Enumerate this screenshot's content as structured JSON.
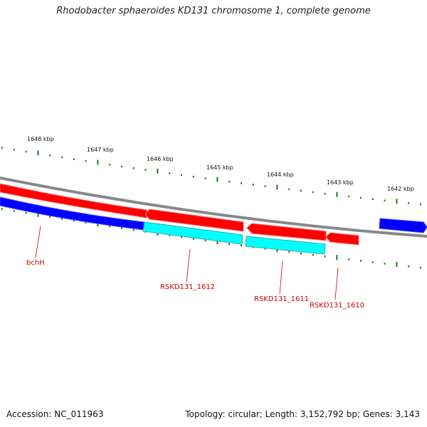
{
  "title": "Rhodobacter sphaeroides KD131 chromosome 1, complete genome",
  "footer": {
    "accession": "Accession: NC_011963",
    "summary": "Topology: circular; Length: 3,152,792 bp; Genes: 3,143"
  },
  "ruler": {
    "unit": "kbp",
    "labels": [
      "1648 kbp",
      "1647 kbp",
      "1646 kbp",
      "1645 kbp",
      "1644 kbp",
      "1643 kbp",
      "1642 kbp"
    ],
    "tick_color": "#1e7a1e"
  },
  "backbone_color": "#888888",
  "genes": [
    {
      "strand": "forward",
      "kind": "gene",
      "color": "#ff0000",
      "label": "",
      "arrow": "right"
    },
    {
      "strand": "forward",
      "kind": "cds",
      "color": "#0000ff",
      "label": "bchH",
      "arrow": "right"
    },
    {
      "strand": "reverse",
      "kind": "gene",
      "color": "#ff0000",
      "label": "",
      "arrow": "left"
    },
    {
      "strand": "reverse",
      "kind": "cds",
      "color": "#00ffff",
      "label": "RSKD131_1612",
      "arrow": "none"
    },
    {
      "strand": "reverse",
      "kind": "gene",
      "color": "#ff0000",
      "label": "",
      "arrow": "left"
    },
    {
      "strand": "reverse",
      "kind": "cds",
      "color": "#00ffff",
      "label": "RSKD131_1611",
      "arrow": "none"
    },
    {
      "strand": "reverse",
      "kind": "gene",
      "color": "#ff0000",
      "label": "",
      "arrow": "left"
    },
    {
      "strand": "reverse",
      "kind": "cds",
      "color": "#00ffff",
      "label": "RSKD131_1610",
      "arrow": "none"
    },
    {
      "strand": "forward",
      "kind": "cds",
      "color": "#0000ff",
      "label": "",
      "arrow": "right"
    }
  ],
  "label_color": "#cc0000"
}
